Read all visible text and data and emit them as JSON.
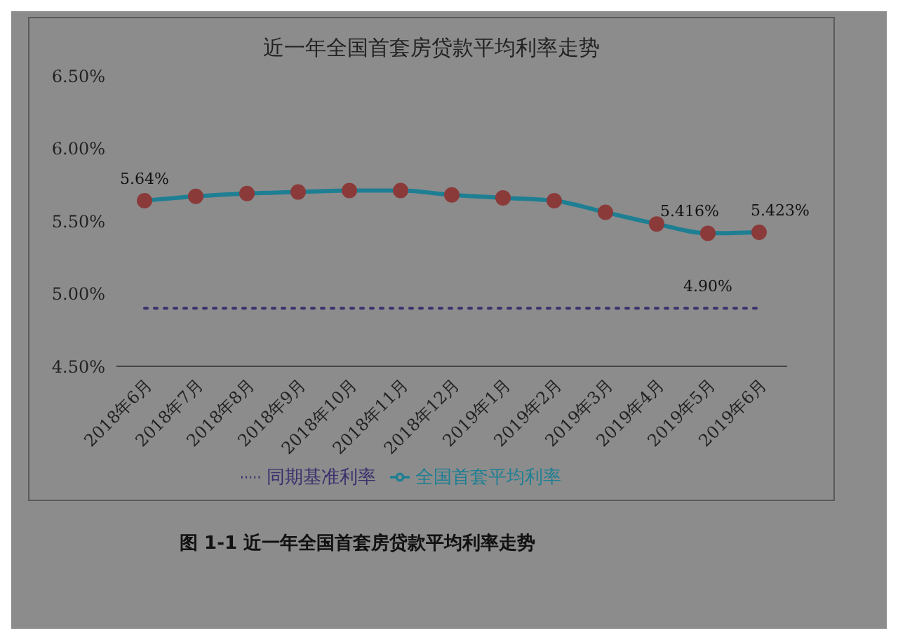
{
  "chart_data": {
    "type": "line",
    "title": "近一年全国首套房贷款平均利率走势",
    "categories": [
      "2018年6月",
      "2018年7月",
      "2018年8月",
      "2018年9月",
      "2018年10月",
      "2018年11月",
      "2018年12月",
      "2019年1月",
      "2019年2月",
      "2019年3月",
      "2019年4月",
      "2019年5月",
      "2019年6月"
    ],
    "series": [
      {
        "name": "同期基准利率",
        "color": "#3b2f6e",
        "line_style": "dotted",
        "marker": "none",
        "values": [
          4.9,
          4.9,
          4.9,
          4.9,
          4.9,
          4.9,
          4.9,
          4.9,
          4.9,
          4.9,
          4.9,
          4.9,
          4.9
        ],
        "value_labels": [
          null,
          null,
          null,
          null,
          null,
          null,
          null,
          null,
          null,
          null,
          null,
          "4.90%",
          null
        ]
      },
      {
        "name": "全国首套平均利率",
        "color": "#1e7f93",
        "line_style": "solid",
        "marker": "circle",
        "values": [
          5.64,
          5.67,
          5.69,
          5.7,
          5.71,
          5.71,
          5.68,
          5.66,
          5.64,
          5.56,
          5.48,
          5.416,
          5.423
        ],
        "value_labels": [
          "5.64%",
          null,
          null,
          null,
          null,
          null,
          null,
          null,
          null,
          null,
          null,
          "5.416%",
          "5.423%"
        ]
      }
    ],
    "ylim": [
      4.5,
      6.5
    ],
    "yticks": [
      {
        "value": 4.5,
        "label": "4.50%"
      },
      {
        "value": 5,
        "label": "5.00%"
      },
      {
        "value": 5.5,
        "label": "5.50%"
      },
      {
        "value": 6,
        "label": "6.00%"
      },
      {
        "value": 6.5,
        "label": "6.50%"
      }
    ],
    "grid": false,
    "legend": "bottom",
    "annotations": [
      "图 1-1  近一年全国首套房贷款平均利率走势"
    ]
  }
}
